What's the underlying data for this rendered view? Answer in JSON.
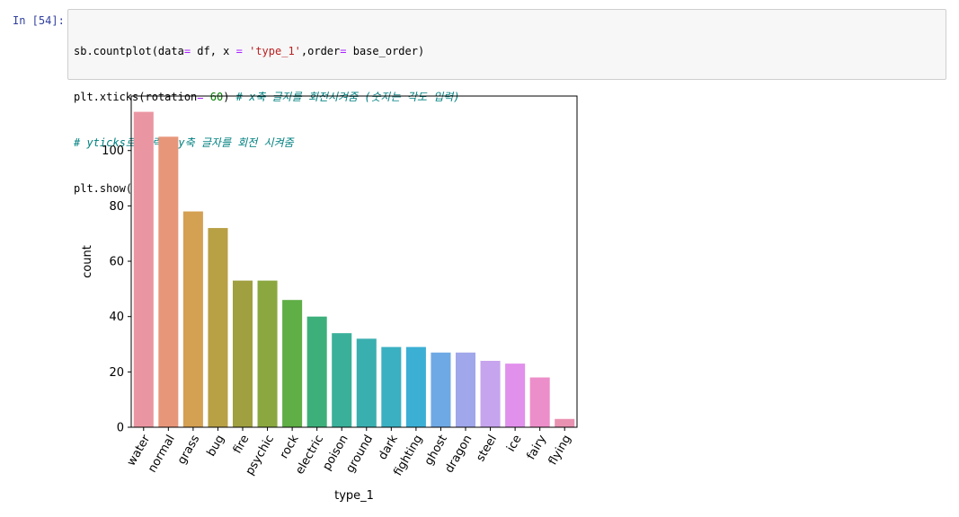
{
  "cell": {
    "prompt": "In [54]:",
    "code": {
      "line1": {
        "a": "sb.countplot(data",
        "eq1": "=",
        "b": " df, x ",
        "eq2": "=",
        "c": " ",
        "str": "'type_1'",
        "d": ",order",
        "eq3": "=",
        "e": " base_order)"
      },
      "line2": {
        "a": "plt.xticks(rotation",
        "eq": "=",
        "b": " ",
        "num": "60",
        "c": ") ",
        "comment": "# x축 글자를 회전시켜줌 (숫자는 각도 입력)"
      },
      "line3": {
        "comment": "# yticks로 입력시 y축 글자를 회전 시켜줌"
      },
      "line4": {
        "a": "plt.show()"
      }
    }
  },
  "chart_data": {
    "type": "bar",
    "categories": [
      "water",
      "normal",
      "grass",
      "bug",
      "fire",
      "psychic",
      "rock",
      "electric",
      "poison",
      "ground",
      "dark",
      "fighting",
      "ghost",
      "dragon",
      "steel",
      "ice",
      "fairy",
      "flying"
    ],
    "values": [
      114,
      105,
      78,
      72,
      53,
      53,
      46,
      40,
      34,
      32,
      29,
      29,
      27,
      27,
      24,
      23,
      18,
      3
    ],
    "colors": [
      "#ea96a2",
      "#e8967a",
      "#d4a052",
      "#b8a045",
      "#a0a040",
      "#8aa83f",
      "#5fae46",
      "#3daf7b",
      "#3ab09a",
      "#3aafb0",
      "#3ab0c2",
      "#3cafd5",
      "#6fa9e5",
      "#a0a7ea",
      "#c7a4ee",
      "#e190ec",
      "#ec8ec9",
      "#e991b1"
    ],
    "xlabel": "type_1",
    "ylabel": "count",
    "yticks": [
      "0",
      "20",
      "40",
      "60",
      "80",
      "100"
    ],
    "ylim": [
      0,
      119.7
    ],
    "xtick_rotation": 60,
    "grid": false
  }
}
